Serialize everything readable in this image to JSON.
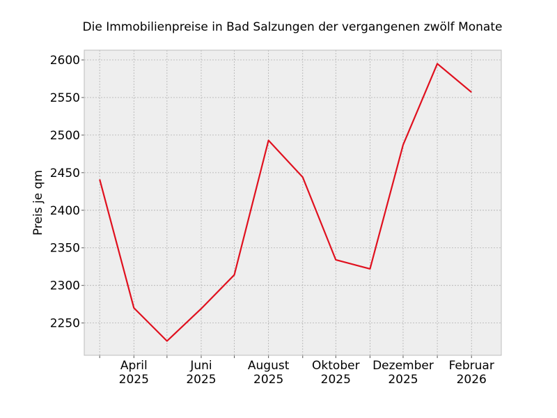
{
  "chart_data": {
    "type": "line",
    "title": "Die Immobilienpreise in Bad Salzungen der vergangenen zwölf Monate",
    "xlabel": "",
    "ylabel": "Preis je qm",
    "x": [
      "2025-03",
      "2025-04",
      "2025-05",
      "2025-06",
      "2025-07",
      "2025-08",
      "2025-09",
      "2025-10",
      "2025-11",
      "2025-12",
      "2026-01",
      "2026-02"
    ],
    "x_tick_labels": [
      {
        "x": "2025-04",
        "line1": "April",
        "line2": "2025"
      },
      {
        "x": "2025-06",
        "line1": "Juni",
        "line2": "2025"
      },
      {
        "x": "2025-08",
        "line1": "August",
        "line2": "2025"
      },
      {
        "x": "2025-10",
        "line1": "Oktober",
        "line2": "2025"
      },
      {
        "x": "2025-12",
        "line1": "Dezember",
        "line2": "2025"
      },
      {
        "x": "2026-02",
        "line1": "Februar",
        "line2": "2026"
      }
    ],
    "series": [
      {
        "values": [
          2441,
          2270,
          2226,
          2269,
          2314,
          2493,
          2444,
          2334,
          2322,
          2487,
          2595,
          2557
        ],
        "color": "#e0101e"
      }
    ],
    "yticks": [
      2250,
      2300,
      2350,
      2400,
      2450,
      2500,
      2550,
      2600
    ],
    "ylim": [
      2207,
      2613
    ],
    "xlim": [
      "2025-02-15",
      "2026-02-28"
    ],
    "grid": true,
    "legend": "none",
    "plot_background": "#eeeeee",
    "grid_color": "#b0b0b0"
  }
}
